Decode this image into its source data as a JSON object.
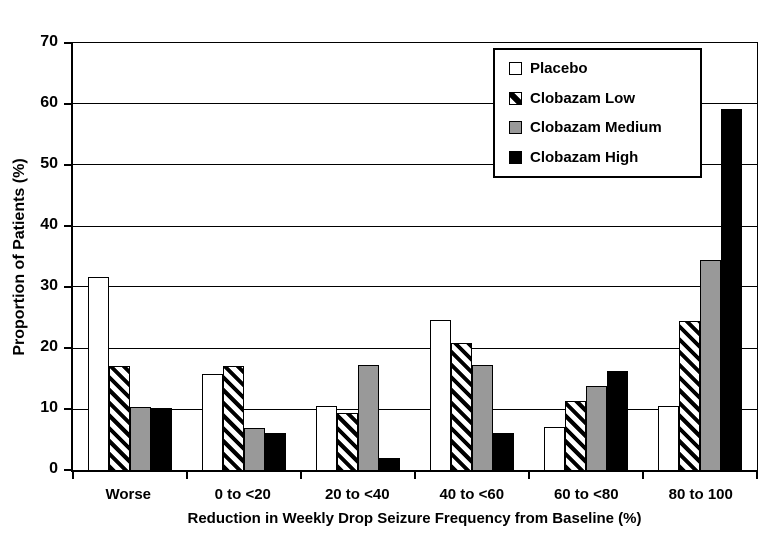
{
  "chart_data": {
    "type": "bar",
    "title": "",
    "xlabel": "Reduction in Weekly Drop Seizure Frequency from Baseline (%)",
    "ylabel": "Proportion of Patients (%)",
    "ylim": [
      0,
      70
    ],
    "yticks": [
      0,
      10,
      20,
      30,
      40,
      50,
      60,
      70
    ],
    "grid": "horizontal",
    "legend_position": "inside-top-right",
    "categories": [
      "Worse",
      "0 to <20",
      "20 to <40",
      "40 to <60",
      "60 to <80",
      "80 to 100"
    ],
    "series": [
      {
        "name": "Placebo",
        "style": "white",
        "values": [
          31.6,
          15.8,
          10.5,
          24.6,
          7.0,
          10.5
        ]
      },
      {
        "name": "Clobazam Low",
        "style": "hatch",
        "values": [
          17.0,
          17.0,
          9.4,
          20.8,
          11.3,
          24.5
        ]
      },
      {
        "name": "Clobazam Medium",
        "style": "gray",
        "values": [
          10.3,
          6.9,
          17.2,
          17.2,
          13.8,
          34.5
        ]
      },
      {
        "name": "Clobazam High",
        "style": "black",
        "values": [
          10.2,
          6.1,
          2.0,
          6.1,
          16.3,
          59.2
        ]
      }
    ],
    "colors": {
      "bar_outline": "#000000",
      "gray_fill": "#999999",
      "black_fill": "#000000",
      "white_fill": "#ffffff",
      "axis": "#000000"
    }
  }
}
